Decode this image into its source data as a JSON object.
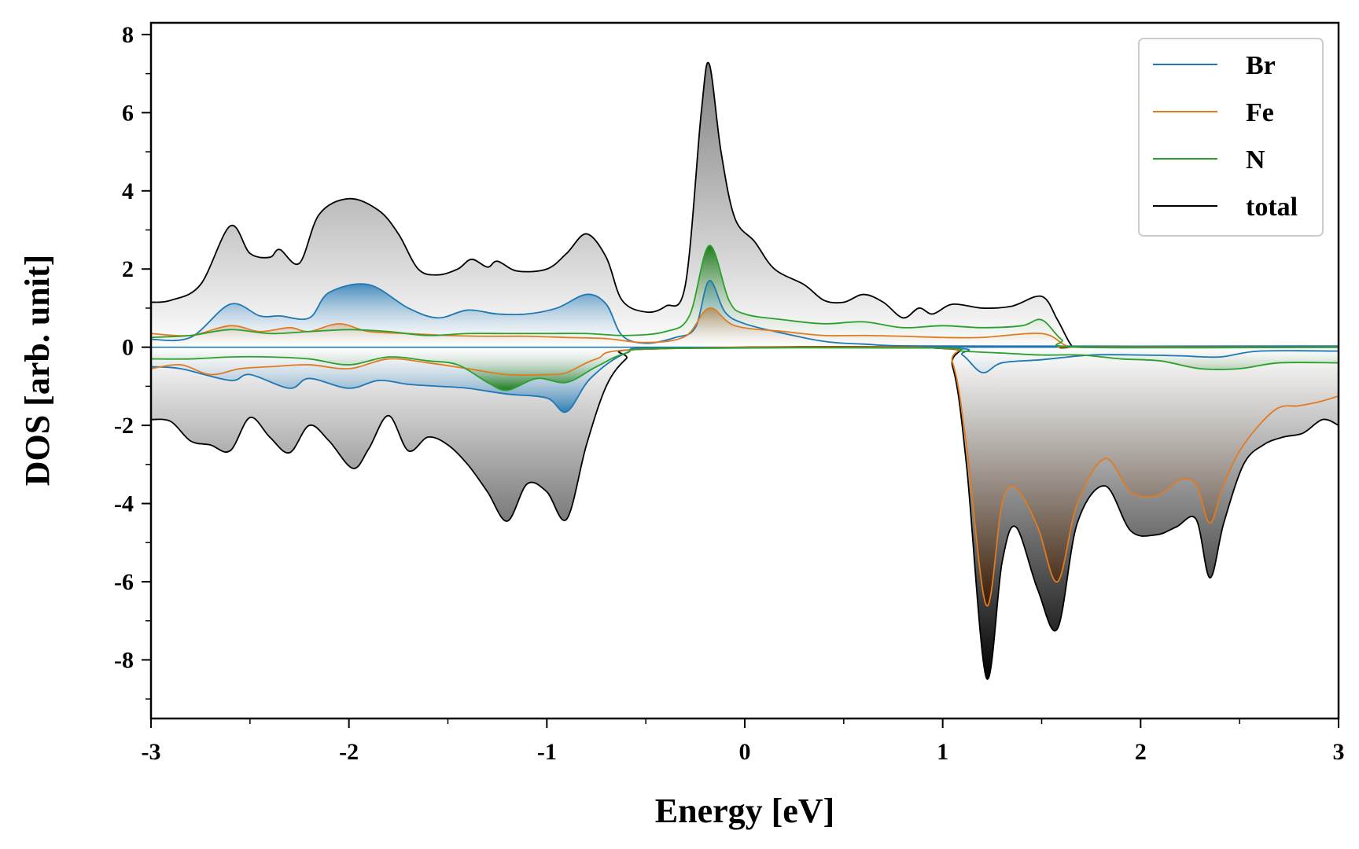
{
  "chart_data": {
    "type": "area",
    "title": "",
    "xlabel": "Energy [eV]",
    "ylabel": "DOS [arb. unit]",
    "xlim": [
      -3,
      3
    ],
    "ylim": [
      -9.5,
      8.3
    ],
    "xticks": [
      -3,
      -2,
      -1,
      0,
      1,
      2,
      3
    ],
    "xtick_labels": [
      "-3",
      "-2",
      "-1",
      "0",
      "1",
      "2",
      "3"
    ],
    "yticks": [
      -8,
      -6,
      -4,
      -2,
      0,
      2,
      4,
      6,
      8
    ],
    "ytick_labels": [
      "-8",
      "-6",
      "-4",
      "-2",
      "0",
      "2",
      "4",
      "6",
      "8"
    ],
    "legend_position": "top-right",
    "series": [
      {
        "name": "Br",
        "color": "#1f77b4",
        "up": [
          [
            -3,
            0.2
          ],
          [
            -2.8,
            0.25
          ],
          [
            -2.6,
            1.1
          ],
          [
            -2.45,
            0.8
          ],
          [
            -2.35,
            0.8
          ],
          [
            -2.2,
            0.75
          ],
          [
            -2.1,
            1.4
          ],
          [
            -1.9,
            1.6
          ],
          [
            -1.7,
            1.0
          ],
          [
            -1.55,
            0.75
          ],
          [
            -1.4,
            0.95
          ],
          [
            -1.25,
            0.85
          ],
          [
            -1.1,
            0.85
          ],
          [
            -0.95,
            1.0
          ],
          [
            -0.8,
            1.35
          ],
          [
            -0.7,
            1.1
          ],
          [
            -0.62,
            0.3
          ],
          [
            -0.5,
            0.1
          ],
          [
            -0.35,
            0.25
          ],
          [
            -0.25,
            0.5
          ],
          [
            -0.18,
            1.7
          ],
          [
            -0.1,
            0.9
          ],
          [
            0.0,
            0.6
          ],
          [
            0.2,
            0.35
          ],
          [
            0.4,
            0.15
          ],
          [
            0.6,
            0.08
          ],
          [
            1.0,
            0.03
          ],
          [
            3,
            0.03
          ]
        ],
        "down": [
          [
            -3,
            -0.5
          ],
          [
            -2.85,
            -0.55
          ],
          [
            -2.6,
            -0.85
          ],
          [
            -2.5,
            -0.7
          ],
          [
            -2.3,
            -1.05
          ],
          [
            -2.2,
            -0.8
          ],
          [
            -2.0,
            -1.05
          ],
          [
            -1.85,
            -0.85
          ],
          [
            -1.7,
            -0.95
          ],
          [
            -1.55,
            -1.0
          ],
          [
            -1.4,
            -1.05
          ],
          [
            -1.2,
            -1.2
          ],
          [
            -1.0,
            -1.3
          ],
          [
            -0.9,
            -1.65
          ],
          [
            -0.78,
            -0.8
          ],
          [
            -0.6,
            -0.15
          ],
          [
            -0.4,
            -0.02
          ],
          [
            1.0,
            -0.02
          ],
          [
            1.1,
            -0.2
          ],
          [
            1.2,
            -0.65
          ],
          [
            1.3,
            -0.4
          ],
          [
            1.5,
            -0.32
          ],
          [
            1.75,
            -0.2
          ],
          [
            2.0,
            -0.2
          ],
          [
            2.2,
            -0.22
          ],
          [
            2.4,
            -0.25
          ],
          [
            2.6,
            -0.1
          ],
          [
            3,
            -0.1
          ]
        ]
      },
      {
        "name": "Fe",
        "color": "#e07b22",
        "up": [
          [
            -3,
            0.35
          ],
          [
            -2.8,
            0.3
          ],
          [
            -2.6,
            0.55
          ],
          [
            -2.45,
            0.4
          ],
          [
            -2.3,
            0.5
          ],
          [
            -2.2,
            0.4
          ],
          [
            -2.05,
            0.6
          ],
          [
            -1.9,
            0.4
          ],
          [
            -1.7,
            0.35
          ],
          [
            -1.5,
            0.3
          ],
          [
            -1.3,
            0.28
          ],
          [
            -1.1,
            0.28
          ],
          [
            -0.9,
            0.25
          ],
          [
            -0.7,
            0.22
          ],
          [
            -0.5,
            0.12
          ],
          [
            -0.3,
            0.28
          ],
          [
            -0.18,
            1.0
          ],
          [
            -0.05,
            0.55
          ],
          [
            0.2,
            0.4
          ],
          [
            0.4,
            0.3
          ],
          [
            0.6,
            0.3
          ],
          [
            0.8,
            0.28
          ],
          [
            1.0,
            0.25
          ],
          [
            1.2,
            0.25
          ],
          [
            1.5,
            0.35
          ],
          [
            1.62,
            0.05
          ],
          [
            1.7,
            0.0
          ],
          [
            3,
            0.0
          ]
        ],
        "down": [
          [
            -3,
            -0.55
          ],
          [
            -2.85,
            -0.45
          ],
          [
            -2.7,
            -0.7
          ],
          [
            -2.55,
            -0.55
          ],
          [
            -2.4,
            -0.5
          ],
          [
            -2.2,
            -0.45
          ],
          [
            -2.0,
            -0.55
          ],
          [
            -1.8,
            -0.3
          ],
          [
            -1.6,
            -0.4
          ],
          [
            -1.4,
            -0.55
          ],
          [
            -1.2,
            -0.7
          ],
          [
            -1.0,
            -0.7
          ],
          [
            -0.9,
            -0.65
          ],
          [
            -0.75,
            -0.3
          ],
          [
            -0.5,
            -0.05
          ],
          [
            0.95,
            -0.02
          ],
          [
            1.05,
            -0.4
          ],
          [
            1.12,
            -2.5
          ],
          [
            1.22,
            -6.6
          ],
          [
            1.3,
            -4.0
          ],
          [
            1.37,
            -3.6
          ],
          [
            1.48,
            -4.6
          ],
          [
            1.58,
            -6.0
          ],
          [
            1.68,
            -4.0
          ],
          [
            1.82,
            -2.85
          ],
          [
            1.95,
            -3.7
          ],
          [
            2.08,
            -3.8
          ],
          [
            2.2,
            -3.4
          ],
          [
            2.28,
            -3.5
          ],
          [
            2.35,
            -4.5
          ],
          [
            2.42,
            -3.5
          ],
          [
            2.52,
            -2.5
          ],
          [
            2.68,
            -1.6
          ],
          [
            2.8,
            -1.5
          ],
          [
            2.9,
            -1.4
          ],
          [
            3,
            -1.25
          ]
        ]
      },
      {
        "name": "N",
        "color": "#2ca02c",
        "up": [
          [
            -3,
            0.25
          ],
          [
            -2.8,
            0.3
          ],
          [
            -2.6,
            0.45
          ],
          [
            -2.4,
            0.35
          ],
          [
            -2.2,
            0.4
          ],
          [
            -2.0,
            0.45
          ],
          [
            -1.8,
            0.4
          ],
          [
            -1.6,
            0.3
          ],
          [
            -1.4,
            0.35
          ],
          [
            -1.2,
            0.35
          ],
          [
            -1.0,
            0.35
          ],
          [
            -0.8,
            0.35
          ],
          [
            -0.6,
            0.3
          ],
          [
            -0.4,
            0.4
          ],
          [
            -0.28,
            0.8
          ],
          [
            -0.18,
            2.6
          ],
          [
            -0.08,
            1.2
          ],
          [
            0.0,
            0.85
          ],
          [
            0.2,
            0.7
          ],
          [
            0.4,
            0.6
          ],
          [
            0.6,
            0.65
          ],
          [
            0.8,
            0.5
          ],
          [
            1.0,
            0.55
          ],
          [
            1.2,
            0.5
          ],
          [
            1.4,
            0.55
          ],
          [
            1.5,
            0.7
          ],
          [
            1.6,
            0.2
          ],
          [
            1.7,
            0.0
          ],
          [
            3,
            0.0
          ]
        ],
        "down": [
          [
            -3,
            -0.3
          ],
          [
            -2.8,
            -0.3
          ],
          [
            -2.6,
            -0.25
          ],
          [
            -2.4,
            -0.25
          ],
          [
            -2.2,
            -0.3
          ],
          [
            -2.0,
            -0.45
          ],
          [
            -1.8,
            -0.25
          ],
          [
            -1.6,
            -0.35
          ],
          [
            -1.45,
            -0.45
          ],
          [
            -1.3,
            -0.9
          ],
          [
            -1.2,
            -1.1
          ],
          [
            -1.05,
            -0.8
          ],
          [
            -0.9,
            -0.9
          ],
          [
            -0.75,
            -0.5
          ],
          [
            -0.6,
            -0.15
          ],
          [
            -0.4,
            -0.03
          ],
          [
            0.95,
            -0.02
          ],
          [
            1.1,
            -0.1
          ],
          [
            1.3,
            -0.15
          ],
          [
            1.5,
            -0.2
          ],
          [
            1.7,
            -0.2
          ],
          [
            1.9,
            -0.3
          ],
          [
            2.1,
            -0.35
          ],
          [
            2.3,
            -0.55
          ],
          [
            2.5,
            -0.55
          ],
          [
            2.7,
            -0.4
          ],
          [
            3,
            -0.4
          ]
        ]
      },
      {
        "name": "total",
        "color": "#000000",
        "up": [
          [
            -3,
            1.15
          ],
          [
            -2.9,
            1.2
          ],
          [
            -2.75,
            1.6
          ],
          [
            -2.6,
            3.1
          ],
          [
            -2.5,
            2.4
          ],
          [
            -2.4,
            2.3
          ],
          [
            -2.35,
            2.5
          ],
          [
            -2.25,
            2.15
          ],
          [
            -2.15,
            3.4
          ],
          [
            -2.0,
            3.8
          ],
          [
            -1.85,
            3.5
          ],
          [
            -1.75,
            2.9
          ],
          [
            -1.65,
            2.0
          ],
          [
            -1.55,
            1.85
          ],
          [
            -1.45,
            2.0
          ],
          [
            -1.38,
            2.25
          ],
          [
            -1.3,
            2.05
          ],
          [
            -1.25,
            2.2
          ],
          [
            -1.15,
            1.95
          ],
          [
            -1.0,
            2.0
          ],
          [
            -0.9,
            2.4
          ],
          [
            -0.8,
            2.9
          ],
          [
            -0.7,
            2.3
          ],
          [
            -0.62,
            1.2
          ],
          [
            -0.5,
            0.9
          ],
          [
            -0.4,
            1.05
          ],
          [
            -0.3,
            1.6
          ],
          [
            -0.22,
            6.0
          ],
          [
            -0.18,
            7.25
          ],
          [
            -0.12,
            5.0
          ],
          [
            -0.05,
            3.3
          ],
          [
            0.05,
            2.7
          ],
          [
            0.15,
            2.0
          ],
          [
            0.3,
            1.6
          ],
          [
            0.4,
            1.2
          ],
          [
            0.5,
            1.15
          ],
          [
            0.6,
            1.35
          ],
          [
            0.7,
            1.15
          ],
          [
            0.8,
            0.75
          ],
          [
            0.88,
            1.0
          ],
          [
            0.95,
            0.85
          ],
          [
            1.05,
            1.1
          ],
          [
            1.2,
            1.0
          ],
          [
            1.35,
            1.05
          ],
          [
            1.5,
            1.3
          ],
          [
            1.58,
            0.7
          ],
          [
            1.65,
            0.05
          ],
          [
            1.7,
            0.0
          ],
          [
            3,
            0.0
          ]
        ],
        "down": [
          [
            -3,
            -1.85
          ],
          [
            -2.9,
            -1.9
          ],
          [
            -2.8,
            -2.4
          ],
          [
            -2.7,
            -2.5
          ],
          [
            -2.6,
            -2.65
          ],
          [
            -2.5,
            -1.8
          ],
          [
            -2.4,
            -2.3
          ],
          [
            -2.3,
            -2.7
          ],
          [
            -2.2,
            -2.0
          ],
          [
            -2.1,
            -2.4
          ],
          [
            -1.98,
            -3.1
          ],
          [
            -1.9,
            -2.6
          ],
          [
            -1.8,
            -1.75
          ],
          [
            -1.7,
            -2.65
          ],
          [
            -1.6,
            -2.3
          ],
          [
            -1.5,
            -2.5
          ],
          [
            -1.4,
            -3.0
          ],
          [
            -1.3,
            -3.7
          ],
          [
            -1.2,
            -4.45
          ],
          [
            -1.1,
            -3.5
          ],
          [
            -1.0,
            -3.7
          ],
          [
            -0.9,
            -4.4
          ],
          [
            -0.8,
            -2.5
          ],
          [
            -0.7,
            -1.0
          ],
          [
            -0.6,
            -0.3
          ],
          [
            -0.5,
            -0.05
          ],
          [
            0.95,
            -0.02
          ],
          [
            1.05,
            -0.5
          ],
          [
            1.12,
            -3.0
          ],
          [
            1.22,
            -8.45
          ],
          [
            1.3,
            -5.5
          ],
          [
            1.37,
            -4.6
          ],
          [
            1.48,
            -6.2
          ],
          [
            1.58,
            -7.2
          ],
          [
            1.68,
            -4.5
          ],
          [
            1.82,
            -3.55
          ],
          [
            1.95,
            -4.7
          ],
          [
            2.08,
            -4.8
          ],
          [
            2.18,
            -4.6
          ],
          [
            2.28,
            -4.4
          ],
          [
            2.35,
            -5.9
          ],
          [
            2.42,
            -4.5
          ],
          [
            2.52,
            -3.0
          ],
          [
            2.62,
            -2.5
          ],
          [
            2.72,
            -2.3
          ],
          [
            2.82,
            -2.2
          ],
          [
            2.92,
            -1.85
          ],
          [
            3,
            -2.0
          ]
        ]
      }
    ]
  }
}
